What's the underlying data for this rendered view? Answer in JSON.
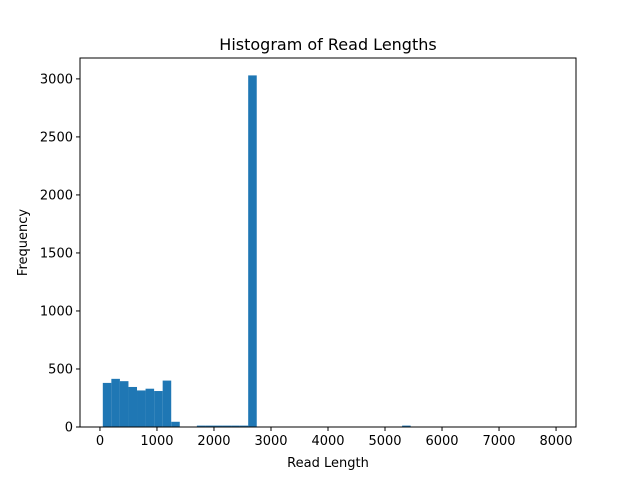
{
  "chart_data": {
    "type": "bar",
    "title": "Histogram of Read Lengths",
    "xlabel": "Read Length",
    "ylabel": "Frequency",
    "xlim": [
      -350,
      8350
    ],
    "ylim": [
      0,
      3180
    ],
    "xticks": [
      0,
      1000,
      2000,
      3000,
      4000,
      5000,
      6000,
      7000,
      8000
    ],
    "yticks": [
      0,
      500,
      1000,
      1500,
      2000,
      2500,
      3000
    ],
    "bar_color": "#1f77b4",
    "bin_edges": [
      50,
      200,
      350,
      500,
      650,
      800,
      950,
      1100,
      1250,
      1400,
      1550,
      1700,
      1850,
      2000,
      2150,
      2300,
      2450,
      2600,
      2750,
      2900,
      3050,
      3200,
      3350,
      3500,
      3650,
      3800,
      3950,
      4100,
      4250,
      4400,
      4550,
      4700,
      4850,
      5000,
      5150,
      5300,
      5450,
      5600,
      5750,
      5900,
      6050,
      6200,
      6350,
      6500,
      6650,
      6800,
      6950,
      7100,
      7250,
      7400,
      7550,
      7700,
      7850,
      8000
    ],
    "values": [
      380,
      415,
      395,
      345,
      315,
      330,
      310,
      400,
      45,
      0,
      0,
      12,
      12,
      12,
      12,
      12,
      12,
      3030,
      0,
      0,
      0,
      0,
      0,
      0,
      0,
      0,
      0,
      0,
      0,
      0,
      0,
      0,
      0,
      0,
      0,
      12,
      0,
      0,
      0,
      0,
      0,
      0,
      0,
      0,
      0,
      0,
      0,
      0,
      0,
      0,
      0,
      0,
      0
    ]
  }
}
